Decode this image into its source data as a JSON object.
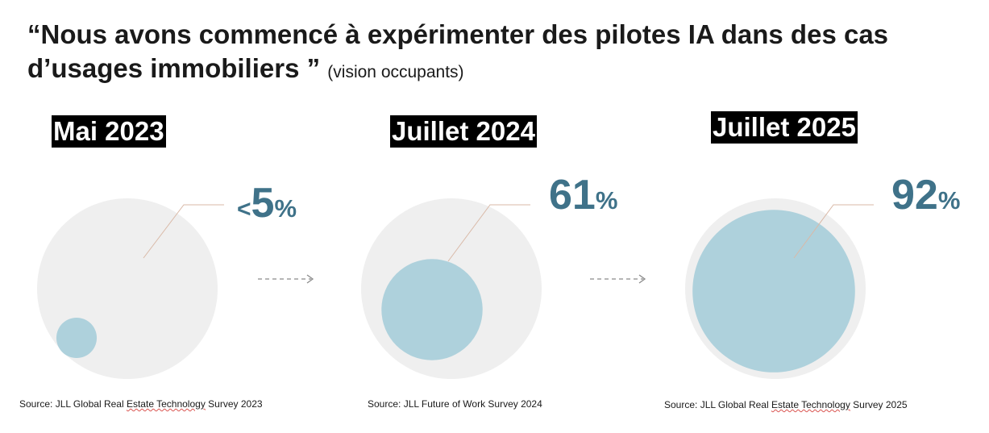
{
  "header": {
    "title": "“Nous avons commencé à expérimenter des pilotes IA dans des cas d’usages immobiliers ”",
    "subtitle": "(vision occupants)"
  },
  "chart_data": {
    "type": "bubble-comparison",
    "title": "“Nous avons commencé à expérimenter des pilotes IA dans des cas d’usages immobiliers ” (vision occupants)",
    "unit": "%",
    "colors": {
      "background_circle": "#efefef",
      "value_circle": "#aed1dc",
      "value_text": "#3f7289",
      "leader_line": "#d9b9a7",
      "arrow": "#8a8a8a"
    },
    "panels": [
      {
        "period": "Mai 2023",
        "value": 5,
        "prefix": "<",
        "value_text": "5",
        "unit": "%",
        "source_prefix": "Source: JLL Global Real ",
        "source_flag": "Estate Technology",
        "source_suffix": " Survey 2023"
      },
      {
        "period": "Juillet 2024",
        "value": 61,
        "prefix": "",
        "value_text": "61",
        "unit": "%",
        "source_prefix": "Source: JLL Future of Work Survey 2024",
        "source_flag": "",
        "source_suffix": ""
      },
      {
        "period": "Juillet 2025",
        "value": 92,
        "prefix": "",
        "value_text": "92",
        "unit": "%",
        "source_prefix": "Source: JLL Global Real ",
        "source_flag": "Estate Technology",
        "source_suffix": " Survey 2025"
      }
    ]
  }
}
